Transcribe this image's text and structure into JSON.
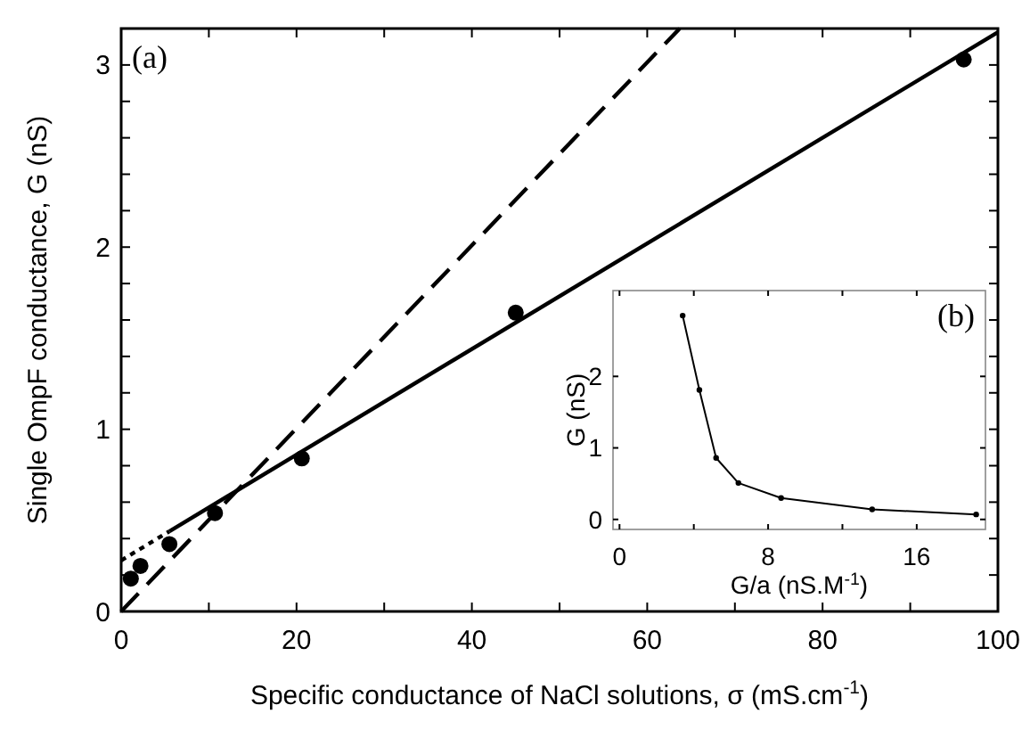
{
  "chart_data": [
    {
      "type": "scatter",
      "xlabel": "Specific conductance of NaCl solutions, σ (mS.cm$^{-1}$)",
      "ylabel": "Single OmpF conductance, G (nS)",
      "annotations": [
        "(a)"
      ],
      "xlim": [
        0,
        100
      ],
      "ylim": [
        0,
        3.2
      ],
      "xticks": [
        0,
        {
          "value": 10,
          "label": null
        },
        20,
        {
          "value": 30,
          "label": null
        },
        40,
        {
          "value": 50,
          "label": null
        },
        60,
        {
          "value": 70,
          "label": null
        },
        80,
        {
          "value": 90,
          "label": null
        },
        100
      ],
      "yticks": [
        0,
        {
          "value": 0.2,
          "label": null
        },
        {
          "value": 0.4,
          "label": null
        },
        {
          "value": 0.6,
          "label": null
        },
        {
          "value": 0.8,
          "label": null
        },
        1,
        {
          "value": 1.2,
          "label": null
        },
        {
          "value": 1.4,
          "label": null
        },
        {
          "value": 1.6,
          "label": null
        },
        {
          "value": 1.8,
          "label": null
        },
        2,
        {
          "value": 2.2,
          "label": null
        },
        {
          "value": 2.4,
          "label": null
        },
        {
          "value": 2.6,
          "label": null
        },
        {
          "value": 2.8,
          "label": null
        },
        3
      ],
      "series": [
        {
          "marker": "circle",
          "color": "#000000",
          "x": [
            1.1,
            2.2,
            5.5,
            10.7,
            20.6,
            45,
            96.1
          ],
          "values": [
            0.18,
            0.25,
            0.37,
            0.54,
            0.84,
            1.64,
            3.03
          ]
        },
        {
          "type": "line",
          "line_style": "solid",
          "marker": "none",
          "color": "#000000",
          "x": [
            5.5,
            100
          ],
          "values": [
            0.44,
            3.18
          ]
        },
        {
          "type": "line",
          "line_style": "dotted",
          "marker": "none",
          "color": "#000000",
          "x": [
            0,
            5.5
          ],
          "values": [
            0.28,
            0.44
          ]
        },
        {
          "type": "line",
          "line_style": "dashed",
          "marker": "none",
          "color": "#000000",
          "x": [
            0,
            63.7
          ],
          "values": [
            0,
            3.2
          ]
        }
      ]
    },
    {
      "type": "line",
      "xlabel": "G/a (nS.M$^{-1}$)",
      "ylabel": "G (nS)",
      "annotations": [
        "(b)"
      ],
      "xlim": [
        -0.35,
        19.7
      ],
      "ylim": [
        -0.14,
        3.2
      ],
      "xticks": [
        0,
        {
          "value": 4,
          "label": null
        },
        8,
        {
          "value": 12,
          "label": null
        },
        16
      ],
      "yticks": [
        0,
        1,
        2
      ],
      "series": [
        {
          "line_style": "solid",
          "marker": "circle",
          "color": "#000000",
          "x": [
            3.4,
            4.3,
            5.2,
            6.4,
            8.7,
            13.6,
            19.2
          ],
          "values": [
            2.85,
            1.81,
            0.86,
            0.51,
            0.3,
            0.14,
            0.07
          ]
        }
      ]
    }
  ]
}
